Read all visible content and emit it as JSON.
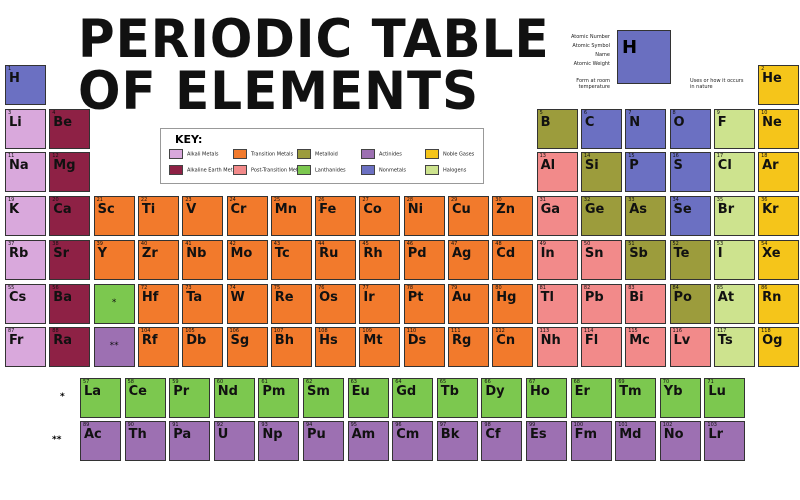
{
  "header": {
    "title_line1": "PERIODIC TABLE",
    "title_line2": "OF ELEMENTS"
  },
  "key": {
    "title": "KEY:",
    "items": [
      {
        "label": "Alkali Metals",
        "color": "#d9a8dc"
      },
      {
        "label": "Alkaline Earth Metals",
        "color": "#8e2145"
      },
      {
        "label": "Transition Metals",
        "color": "#f27a2c"
      },
      {
        "label": "Post-Transition Metals",
        "color": "#f28a8a"
      },
      {
        "label": "Metalloid",
        "color": "#9c9c3c"
      },
      {
        "label": "Lanthanides",
        "color": "#7cc84f"
      },
      {
        "label": "Actinides",
        "color": "#9d70b2"
      },
      {
        "label": "Nonmetals",
        "color": "#6b70c2"
      },
      {
        "label": "Halogens",
        "color": "#cde38e"
      },
      {
        "label": "Noble Gases",
        "color": "#f5c51a"
      }
    ]
  },
  "sample": {
    "symbol": "H",
    "labels": [
      "Atomic Number",
      "Atomic Symbol",
      "Name",
      "Atomic Weight",
      "Form at room temperature",
      "Uses or how it occurs in nature"
    ]
  },
  "table": {
    "rows": [
      [
        {
          "s": "H",
          "n": 1,
          "c": 7
        },
        null,
        null,
        null,
        null,
        null,
        null,
        null,
        null,
        null,
        null,
        null,
        null,
        null,
        null,
        null,
        null,
        {
          "s": "He",
          "n": 2,
          "c": 9
        }
      ],
      [
        {
          "s": "Li",
          "n": 3,
          "c": 0
        },
        {
          "s": "Be",
          "n": 4,
          "c": 1
        },
        null,
        null,
        null,
        null,
        null,
        null,
        null,
        null,
        null,
        null,
        {
          "s": "B",
          "n": 5,
          "c": 4
        },
        {
          "s": "C",
          "n": 6,
          "c": 7
        },
        {
          "s": "N",
          "n": 7,
          "c": 7
        },
        {
          "s": "O",
          "n": 8,
          "c": 7
        },
        {
          "s": "F",
          "n": 9,
          "c": 8
        },
        {
          "s": "Ne",
          "n": 10,
          "c": 9
        }
      ],
      [
        {
          "s": "Na",
          "n": 11,
          "c": 0
        },
        {
          "s": "Mg",
          "n": 12,
          "c": 1
        },
        null,
        null,
        null,
        null,
        null,
        null,
        null,
        null,
        null,
        null,
        {
          "s": "Al",
          "n": 13,
          "c": 3
        },
        {
          "s": "Si",
          "n": 14,
          "c": 4
        },
        {
          "s": "P",
          "n": 15,
          "c": 7
        },
        {
          "s": "S",
          "n": 16,
          "c": 7
        },
        {
          "s": "Cl",
          "n": 17,
          "c": 8
        },
        {
          "s": "Ar",
          "n": 18,
          "c": 9
        }
      ],
      [
        {
          "s": "K",
          "n": 19,
          "c": 0
        },
        {
          "s": "Ca",
          "n": 20,
          "c": 1
        },
        {
          "s": "Sc",
          "n": 21,
          "c": 2
        },
        {
          "s": "Ti",
          "n": 22,
          "c": 2
        },
        {
          "s": "V",
          "n": 23,
          "c": 2
        },
        {
          "s": "Cr",
          "n": 24,
          "c": 2
        },
        {
          "s": "Mn",
          "n": 25,
          "c": 2
        },
        {
          "s": "Fe",
          "n": 26,
          "c": 2
        },
        {
          "s": "Co",
          "n": 27,
          "c": 2
        },
        {
          "s": "Ni",
          "n": 28,
          "c": 2
        },
        {
          "s": "Cu",
          "n": 29,
          "c": 2
        },
        {
          "s": "Zn",
          "n": 30,
          "c": 2
        },
        {
          "s": "Ga",
          "n": 31,
          "c": 3
        },
        {
          "s": "Ge",
          "n": 32,
          "c": 4
        },
        {
          "s": "As",
          "n": 33,
          "c": 4
        },
        {
          "s": "Se",
          "n": 34,
          "c": 7
        },
        {
          "s": "Br",
          "n": 35,
          "c": 8
        },
        {
          "s": "Kr",
          "n": 36,
          "c": 9
        }
      ],
      [
        {
          "s": "Rb",
          "n": 37,
          "c": 0
        },
        {
          "s": "Sr",
          "n": 38,
          "c": 1
        },
        {
          "s": "Y",
          "n": 39,
          "c": 2
        },
        {
          "s": "Zr",
          "n": 40,
          "c": 2
        },
        {
          "s": "Nb",
          "n": 41,
          "c": 2
        },
        {
          "s": "Mo",
          "n": 42,
          "c": 2
        },
        {
          "s": "Tc",
          "n": 43,
          "c": 2
        },
        {
          "s": "Ru",
          "n": 44,
          "c": 2
        },
        {
          "s": "Rh",
          "n": 45,
          "c": 2
        },
        {
          "s": "Pd",
          "n": 46,
          "c": 2
        },
        {
          "s": "Ag",
          "n": 47,
          "c": 2
        },
        {
          "s": "Cd",
          "n": 48,
          "c": 2
        },
        {
          "s": "In",
          "n": 49,
          "c": 3
        },
        {
          "s": "Sn",
          "n": 50,
          "c": 3
        },
        {
          "s": "Sb",
          "n": 51,
          "c": 4
        },
        {
          "s": "Te",
          "n": 52,
          "c": 4
        },
        {
          "s": "I",
          "n": 53,
          "c": 8
        },
        {
          "s": "Xe",
          "n": 54,
          "c": 9
        }
      ],
      [
        {
          "s": "Cs",
          "n": 55,
          "c": 0
        },
        {
          "s": "Ba",
          "n": 56,
          "c": 1
        },
        {
          "note": "*",
          "c": 5
        },
        {
          "s": "Hf",
          "n": 72,
          "c": 2
        },
        {
          "s": "Ta",
          "n": 73,
          "c": 2
        },
        {
          "s": "W",
          "n": 74,
          "c": 2
        },
        {
          "s": "Re",
          "n": 75,
          "c": 2
        },
        {
          "s": "Os",
          "n": 76,
          "c": 2
        },
        {
          "s": "Ir",
          "n": 77,
          "c": 2
        },
        {
          "s": "Pt",
          "n": 78,
          "c": 2
        },
        {
          "s": "Au",
          "n": 79,
          "c": 2
        },
        {
          "s": "Hg",
          "n": 80,
          "c": 2
        },
        {
          "s": "Tl",
          "n": 81,
          "c": 3
        },
        {
          "s": "Pb",
          "n": 82,
          "c": 3
        },
        {
          "s": "Bi",
          "n": 83,
          "c": 3
        },
        {
          "s": "Po",
          "n": 84,
          "c": 4
        },
        {
          "s": "At",
          "n": 85,
          "c": 8
        },
        {
          "s": "Rn",
          "n": 86,
          "c": 9
        }
      ],
      [
        {
          "s": "Fr",
          "n": 87,
          "c": 0
        },
        {
          "s": "Ra",
          "n": 88,
          "c": 1
        },
        {
          "note": "**",
          "c": 6
        },
        {
          "s": "Rf",
          "n": 104,
          "c": 2
        },
        {
          "s": "Db",
          "n": 105,
          "c": 2
        },
        {
          "s": "Sg",
          "n": 106,
          "c": 2
        },
        {
          "s": "Bh",
          "n": 107,
          "c": 2
        },
        {
          "s": "Hs",
          "n": 108,
          "c": 2
        },
        {
          "s": "Mt",
          "n": 109,
          "c": 2
        },
        {
          "s": "Ds",
          "n": 110,
          "c": 2
        },
        {
          "s": "Rg",
          "n": 111,
          "c": 2
        },
        {
          "s": "Cn",
          "n": 112,
          "c": 2
        },
        {
          "s": "Nh",
          "n": 113,
          "c": 3
        },
        {
          "s": "Fl",
          "n": 114,
          "c": 3
        },
        {
          "s": "Mc",
          "n": 115,
          "c": 3
        },
        {
          "s": "Lv",
          "n": 116,
          "c": 3
        },
        {
          "s": "Ts",
          "n": 117,
          "c": 8
        },
        {
          "s": "Og",
          "n": 118,
          "c": 9
        }
      ]
    ],
    "series": [
      {
        "marker": "*",
        "cells": [
          {
            "s": "La",
            "n": 57,
            "c": 5
          },
          {
            "s": "Ce",
            "n": 58,
            "c": 5
          },
          {
            "s": "Pr",
            "n": 59,
            "c": 5
          },
          {
            "s": "Nd",
            "n": 60,
            "c": 5
          },
          {
            "s": "Pm",
            "n": 61,
            "c": 5
          },
          {
            "s": "Sm",
            "n": 62,
            "c": 5
          },
          {
            "s": "Eu",
            "n": 63,
            "c": 5
          },
          {
            "s": "Gd",
            "n": 64,
            "c": 5
          },
          {
            "s": "Tb",
            "n": 65,
            "c": 5
          },
          {
            "s": "Dy",
            "n": 66,
            "c": 5
          },
          {
            "s": "Ho",
            "n": 67,
            "c": 5
          },
          {
            "s": "Er",
            "n": 68,
            "c": 5
          },
          {
            "s": "Tm",
            "n": 69,
            "c": 5
          },
          {
            "s": "Yb",
            "n": 70,
            "c": 5
          },
          {
            "s": "Lu",
            "n": 71,
            "c": 5
          }
        ]
      },
      {
        "marker": "**",
        "cells": [
          {
            "s": "Ac",
            "n": 89,
            "c": 6
          },
          {
            "s": "Th",
            "n": 90,
            "c": 6
          },
          {
            "s": "Pa",
            "n": 91,
            "c": 6
          },
          {
            "s": "U",
            "n": 92,
            "c": 6
          },
          {
            "s": "Np",
            "n": 93,
            "c": 6
          },
          {
            "s": "Pu",
            "n": 94,
            "c": 6
          },
          {
            "s": "Am",
            "n": 95,
            "c": 6
          },
          {
            "s": "Cm",
            "n": 96,
            "c": 6
          },
          {
            "s": "Bk",
            "n": 97,
            "c": 6
          },
          {
            "s": "Cf",
            "n": 98,
            "c": 6
          },
          {
            "s": "Es",
            "n": 99,
            "c": 6
          },
          {
            "s": "Fm",
            "n": 100,
            "c": 6
          },
          {
            "s": "Md",
            "n": 101,
            "c": 6
          },
          {
            "s": "No",
            "n": 102,
            "c": 6
          },
          {
            "s": "Lr",
            "n": 103,
            "c": 6
          }
        ]
      }
    ]
  }
}
